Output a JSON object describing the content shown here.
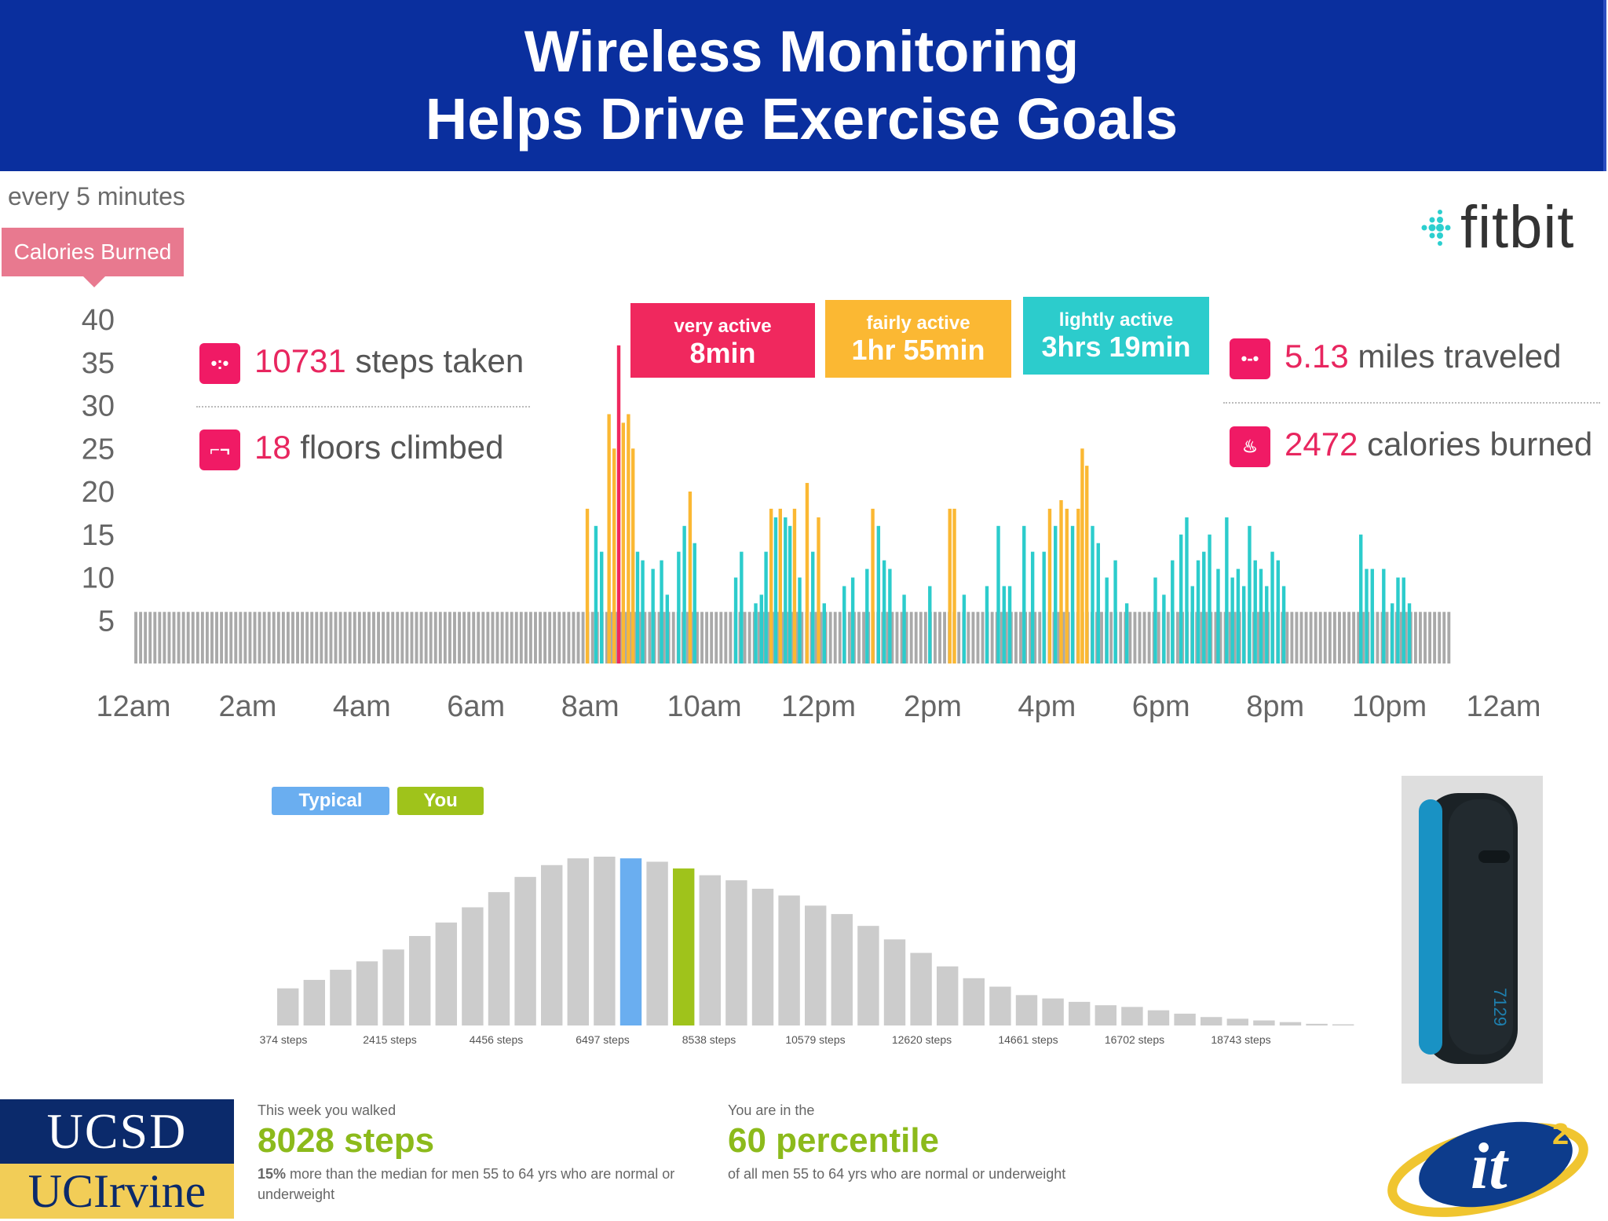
{
  "header": {
    "line1": "Wireless Monitoring",
    "line2": "Helps Drive Exercise Goals"
  },
  "top_panel": {
    "interval_label": "every 5 minutes",
    "metric_tab": "Calories Burned",
    "brand": "fitbit",
    "stats": {
      "steps": {
        "value": "10731",
        "label": " steps taken",
        "icon": "steps-icon"
      },
      "floors": {
        "value": "18",
        "label": " floors climbed",
        "icon": "stairs-icon"
      },
      "miles": {
        "value": "5.13",
        "label": " miles traveled",
        "icon": "distance-icon"
      },
      "calories": {
        "value": "2472",
        "label": " calories burned",
        "icon": "flame-icon"
      }
    },
    "activity": [
      {
        "l1": "very active",
        "l2": "8min",
        "color": "#f0285e"
      },
      {
        "l1": "fairly active",
        "l2": "1hr 55min",
        "color": "#fbb833"
      },
      {
        "l1": "lightly active",
        "l2": "3hrs 19min",
        "color": "#2ccccc"
      }
    ]
  },
  "chart_data": [
    {
      "type": "bar",
      "yticks": [
        5,
        10,
        15,
        20,
        25,
        30,
        35,
        40
      ],
      "xticks": [
        "12am",
        "2am",
        "4am",
        "6am",
        "8am",
        "10am",
        "12pm",
        "2pm",
        "4pm",
        "6pm",
        "8pm",
        "10pm",
        "12am"
      ],
      "ylim": [
        0,
        40
      ],
      "baseline": 6,
      "colors": {
        "sedentary": "#a9a9a9",
        "lightly": "#2ccccc",
        "fairly": "#fbb833",
        "very": "#f0285e"
      },
      "highlight_bars": [
        {
          "hour": 7.95,
          "value": 18,
          "level": "fairly"
        },
        {
          "hour": 8.1,
          "value": 16,
          "level": "lightly"
        },
        {
          "hour": 8.2,
          "value": 13,
          "level": "lightly"
        },
        {
          "hour": 8.33,
          "value": 29,
          "level": "fairly"
        },
        {
          "hour": 8.42,
          "value": 25,
          "level": "fairly"
        },
        {
          "hour": 8.5,
          "value": 37,
          "level": "very"
        },
        {
          "hour": 8.58,
          "value": 28,
          "level": "fairly"
        },
        {
          "hour": 8.67,
          "value": 29,
          "level": "fairly"
        },
        {
          "hour": 8.75,
          "value": 25,
          "level": "fairly"
        },
        {
          "hour": 8.83,
          "value": 13,
          "level": "lightly"
        },
        {
          "hour": 8.92,
          "value": 12,
          "level": "lightly"
        },
        {
          "hour": 9.1,
          "value": 11,
          "level": "lightly"
        },
        {
          "hour": 9.25,
          "value": 12,
          "level": "lightly"
        },
        {
          "hour": 9.35,
          "value": 8,
          "level": "lightly"
        },
        {
          "hour": 9.55,
          "value": 13,
          "level": "lightly"
        },
        {
          "hour": 9.65,
          "value": 16,
          "level": "lightly"
        },
        {
          "hour": 9.75,
          "value": 20,
          "level": "fairly"
        },
        {
          "hour": 9.83,
          "value": 14,
          "level": "lightly"
        },
        {
          "hour": 10.55,
          "value": 10,
          "level": "lightly"
        },
        {
          "hour": 10.65,
          "value": 13,
          "level": "lightly"
        },
        {
          "hour": 10.9,
          "value": 7,
          "level": "lightly"
        },
        {
          "hour": 11.0,
          "value": 8,
          "level": "lightly"
        },
        {
          "hour": 11.08,
          "value": 13,
          "level": "lightly"
        },
        {
          "hour": 11.17,
          "value": 18,
          "level": "fairly"
        },
        {
          "hour": 11.25,
          "value": 17,
          "level": "lightly"
        },
        {
          "hour": 11.33,
          "value": 18,
          "level": "fairly"
        },
        {
          "hour": 11.42,
          "value": 17,
          "level": "lightly"
        },
        {
          "hour": 11.5,
          "value": 16,
          "level": "lightly"
        },
        {
          "hour": 11.58,
          "value": 18,
          "level": "fairly"
        },
        {
          "hour": 11.67,
          "value": 10,
          "level": "lightly"
        },
        {
          "hour": 11.8,
          "value": 21,
          "level": "fairly"
        },
        {
          "hour": 11.9,
          "value": 13,
          "level": "lightly"
        },
        {
          "hour": 12.0,
          "value": 17,
          "level": "fairly"
        },
        {
          "hour": 12.1,
          "value": 7,
          "level": "lightly"
        },
        {
          "hour": 12.45,
          "value": 9,
          "level": "lightly"
        },
        {
          "hour": 12.6,
          "value": 10,
          "level": "lightly"
        },
        {
          "hour": 12.85,
          "value": 11,
          "level": "lightly"
        },
        {
          "hour": 12.95,
          "value": 18,
          "level": "fairly"
        },
        {
          "hour": 13.05,
          "value": 16,
          "level": "lightly"
        },
        {
          "hour": 13.15,
          "value": 12,
          "level": "lightly"
        },
        {
          "hour": 13.25,
          "value": 11,
          "level": "lightly"
        },
        {
          "hour": 13.5,
          "value": 8,
          "level": "lightly"
        },
        {
          "hour": 13.95,
          "value": 9,
          "level": "lightly"
        },
        {
          "hour": 14.3,
          "value": 18,
          "level": "fairly"
        },
        {
          "hour": 14.38,
          "value": 18,
          "level": "fairly"
        },
        {
          "hour": 14.55,
          "value": 8,
          "level": "lightly"
        },
        {
          "hour": 14.95,
          "value": 9,
          "level": "lightly"
        },
        {
          "hour": 15.15,
          "value": 16,
          "level": "lightly"
        },
        {
          "hour": 15.25,
          "value": 9,
          "level": "lightly"
        },
        {
          "hour": 15.35,
          "value": 9,
          "level": "lightly"
        },
        {
          "hour": 15.6,
          "value": 16,
          "level": "lightly"
        },
        {
          "hour": 15.75,
          "value": 13,
          "level": "lightly"
        },
        {
          "hour": 15.95,
          "value": 13,
          "level": "lightly"
        },
        {
          "hour": 16.05,
          "value": 18,
          "level": "fairly"
        },
        {
          "hour": 16.15,
          "value": 16,
          "level": "lightly"
        },
        {
          "hour": 16.25,
          "value": 19,
          "level": "fairly"
        },
        {
          "hour": 16.35,
          "value": 18,
          "level": "fairly"
        },
        {
          "hour": 16.45,
          "value": 16,
          "level": "lightly"
        },
        {
          "hour": 16.55,
          "value": 18,
          "level": "fairly"
        },
        {
          "hour": 16.62,
          "value": 25,
          "level": "fairly"
        },
        {
          "hour": 16.7,
          "value": 23,
          "level": "fairly"
        },
        {
          "hour": 16.8,
          "value": 16,
          "level": "lightly"
        },
        {
          "hour": 16.9,
          "value": 14,
          "level": "lightly"
        },
        {
          "hour": 17.05,
          "value": 10,
          "level": "lightly"
        },
        {
          "hour": 17.2,
          "value": 12,
          "level": "lightly"
        },
        {
          "hour": 17.4,
          "value": 7,
          "level": "lightly"
        },
        {
          "hour": 17.9,
          "value": 10,
          "level": "lightly"
        },
        {
          "hour": 18.05,
          "value": 8,
          "level": "lightly"
        },
        {
          "hour": 18.2,
          "value": 12,
          "level": "lightly"
        },
        {
          "hour": 18.35,
          "value": 15,
          "level": "lightly"
        },
        {
          "hour": 18.45,
          "value": 17,
          "level": "lightly"
        },
        {
          "hour": 18.55,
          "value": 9,
          "level": "lightly"
        },
        {
          "hour": 18.65,
          "value": 12,
          "level": "lightly"
        },
        {
          "hour": 18.75,
          "value": 13,
          "level": "lightly"
        },
        {
          "hour": 18.85,
          "value": 15,
          "level": "lightly"
        },
        {
          "hour": 19.0,
          "value": 11,
          "level": "lightly"
        },
        {
          "hour": 19.15,
          "value": 17,
          "level": "lightly"
        },
        {
          "hour": 19.25,
          "value": 10,
          "level": "lightly"
        },
        {
          "hour": 19.35,
          "value": 11,
          "level": "lightly"
        },
        {
          "hour": 19.45,
          "value": 9,
          "level": "lightly"
        },
        {
          "hour": 19.55,
          "value": 16,
          "level": "lightly"
        },
        {
          "hour": 19.65,
          "value": 12,
          "level": "lightly"
        },
        {
          "hour": 19.75,
          "value": 11,
          "level": "lightly"
        },
        {
          "hour": 19.85,
          "value": 9,
          "level": "lightly"
        },
        {
          "hour": 19.95,
          "value": 13,
          "level": "lightly"
        },
        {
          "hour": 20.05,
          "value": 12,
          "level": "lightly"
        },
        {
          "hour": 20.15,
          "value": 9,
          "level": "lightly"
        },
        {
          "hour": 21.5,
          "value": 15,
          "level": "lightly"
        },
        {
          "hour": 21.6,
          "value": 11,
          "level": "lightly"
        },
        {
          "hour": 21.7,
          "value": 11,
          "level": "lightly"
        },
        {
          "hour": 21.9,
          "value": 11,
          "level": "lightly"
        },
        {
          "hour": 22.05,
          "value": 7,
          "level": "lightly"
        },
        {
          "hour": 22.15,
          "value": 10,
          "level": "lightly"
        },
        {
          "hour": 22.25,
          "value": 10,
          "level": "lightly"
        },
        {
          "hour": 22.35,
          "value": 7,
          "level": "lightly"
        }
      ]
    },
    {
      "type": "bar",
      "xticks": [
        "374 steps",
        "2415 steps",
        "4456 steps",
        "6497 steps",
        "8538 steps",
        "10579 steps",
        "12620 steps",
        "14661 steps",
        "16702 steps",
        "18743 steps"
      ],
      "legend": [
        "Typical",
        "You"
      ],
      "colors": {
        "default": "#cccccc",
        "typical": "#6aaef0",
        "you": "#9fc31b"
      },
      "typical_index": 13,
      "you_index": 15,
      "values": [
        0.22,
        0.27,
        0.33,
        0.38,
        0.45,
        0.53,
        0.61,
        0.7,
        0.79,
        0.88,
        0.95,
        0.99,
        1.0,
        0.99,
        0.97,
        0.93,
        0.89,
        0.86,
        0.81,
        0.77,
        0.71,
        0.66,
        0.59,
        0.51,
        0.43,
        0.35,
        0.28,
        0.23,
        0.18,
        0.16,
        0.14,
        0.12,
        0.11,
        0.09,
        0.07,
        0.05,
        0.04,
        0.03,
        0.02,
        0.01,
        0.005
      ]
    }
  ],
  "summary": {
    "left_small": "This week you walked",
    "left_big": "8028 steps",
    "left_pct": "15%",
    "left_desc_rest": " more than the median for men 55 to 64 yrs who are normal or",
    "left_desc_line2": "underweight",
    "right_small": "You are in the",
    "right_big": "60 percentile",
    "right_desc": "of all men 55 to 64 yrs who are normal or underweight"
  },
  "device": {
    "display": "7129"
  },
  "logos": {
    "ucsd": "UCSD",
    "uci": "UCIrvine",
    "it2": "it",
    "it2_sup": "2"
  }
}
